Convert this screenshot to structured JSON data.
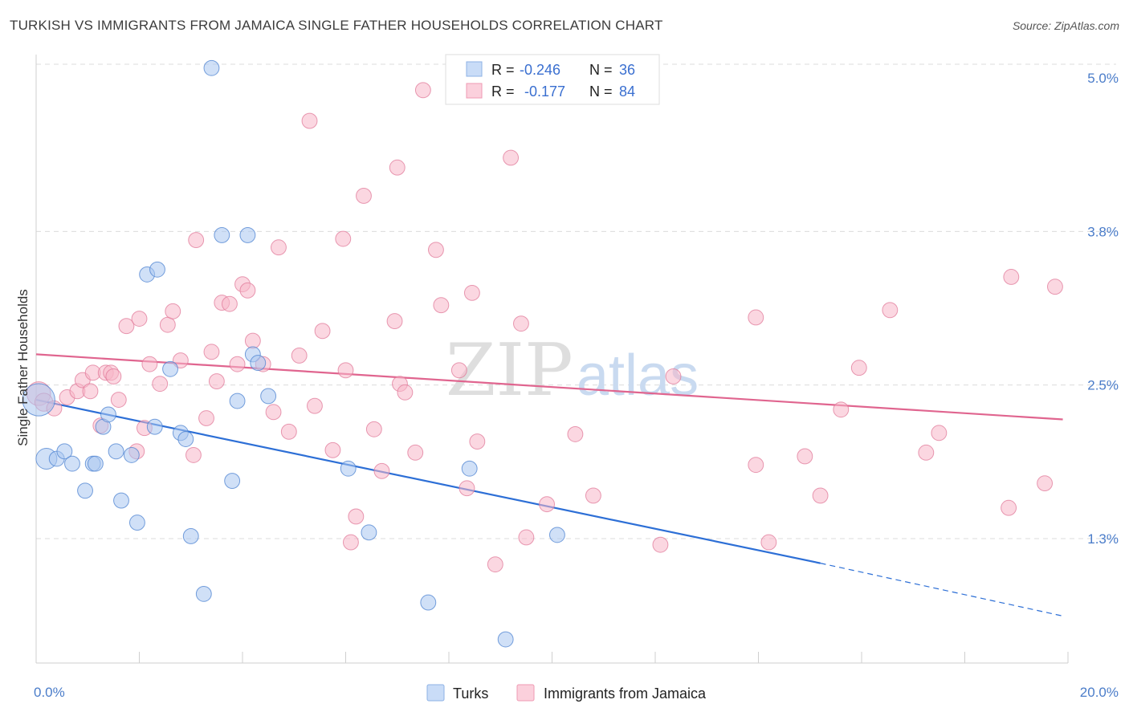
{
  "header": {
    "title": "TURKISH VS IMMIGRANTS FROM JAMAICA SINGLE FATHER HOUSEHOLDS CORRELATION CHART",
    "source": "Source: ZipAtlas.com"
  },
  "watermark": {
    "zip": "ZIP",
    "atlas": "atlas"
  },
  "legend_box": {
    "rows": [
      {
        "r_label": "R =",
        "r_value": "-0.246",
        "n_label": "N =",
        "n_value": "36",
        "color": "#a9c6f0"
      },
      {
        "r_label": "R =",
        "r_value": "-0.177",
        "n_label": "N =",
        "n_value": "84",
        "color": "#f7b6c8"
      }
    ]
  },
  "bottom_legend": {
    "items": [
      {
        "label": "Turks",
        "color": "#a9c6f0"
      },
      {
        "label": "Immigrants from Jamaica",
        "color": "#f7b6c8"
      }
    ]
  },
  "chart_data": {
    "type": "scatter",
    "xlabel": "",
    "ylabel": "Single Father Households",
    "xlim": [
      0,
      20
    ],
    "ylim": [
      0,
      5.2
    ],
    "x_tick_labels": [
      {
        "value": 0,
        "label": "0.0%"
      },
      {
        "value": 20,
        "label": "20.0%"
      }
    ],
    "y_tick_labels": [
      {
        "value": 1.25,
        "label": "1.3%"
      },
      {
        "value": 2.5,
        "label": "2.5%"
      },
      {
        "value": 3.75,
        "label": "3.8%"
      },
      {
        "value": 5.0,
        "label": "5.0%"
      }
    ],
    "grid": true,
    "legend": "top-center",
    "series": [
      {
        "name": "Turks",
        "color": "#a9c6f0",
        "stroke": "#4a80d0",
        "trend_color": "#2d6fd6",
        "trend": {
          "x0": 0,
          "y0": 2.38,
          "x1": 15.2,
          "y1": 1.05,
          "dash_to_x": 19.9,
          "dash_to_y": 0.62
        },
        "points": [
          [
            0.05,
            2.38,
            22
          ],
          [
            0.2,
            1.9,
            14
          ],
          [
            0.4,
            1.9,
            10
          ],
          [
            0.55,
            1.96,
            10
          ],
          [
            0.7,
            1.86,
            10
          ],
          [
            0.95,
            1.64,
            10
          ],
          [
            1.1,
            1.86,
            10
          ],
          [
            1.15,
            1.86,
            10
          ],
          [
            1.3,
            2.16,
            10
          ],
          [
            1.4,
            2.26,
            10
          ],
          [
            1.55,
            1.96,
            10
          ],
          [
            1.65,
            1.56,
            10
          ],
          [
            1.85,
            1.93,
            10
          ],
          [
            1.96,
            1.38,
            10
          ],
          [
            2.15,
            3.4,
            10
          ],
          [
            2.35,
            3.44,
            10
          ],
          [
            2.3,
            2.16,
            10
          ],
          [
            2.6,
            2.63,
            10
          ],
          [
            2.8,
            2.11,
            10
          ],
          [
            2.9,
            2.06,
            10
          ],
          [
            3.0,
            1.27,
            10
          ],
          [
            3.25,
            0.8,
            10
          ],
          [
            3.4,
            5.08,
            10
          ],
          [
            3.6,
            3.72,
            10
          ],
          [
            3.8,
            1.72,
            10
          ],
          [
            3.9,
            2.37,
            10
          ],
          [
            4.1,
            3.72,
            10
          ],
          [
            4.2,
            2.75,
            10
          ],
          [
            4.3,
            2.68,
            10
          ],
          [
            4.5,
            2.41,
            10
          ],
          [
            6.05,
            1.82,
            10
          ],
          [
            6.45,
            1.3,
            10
          ],
          [
            7.6,
            0.73,
            10
          ],
          [
            8.4,
            1.82,
            10
          ],
          [
            9.1,
            0.43,
            10
          ],
          [
            10.1,
            1.28,
            10
          ]
        ]
      },
      {
        "name": "Immigrants from Jamaica",
        "color": "#f7b6c8",
        "stroke": "#e07898",
        "trend_color": "#e0658f",
        "trend": {
          "x0": 0,
          "y0": 2.75,
          "x1": 19.9,
          "y1": 2.22
        },
        "points": [
          [
            0.05,
            2.43,
            16
          ],
          [
            0.15,
            2.36,
            12
          ],
          [
            0.35,
            2.31,
            10
          ],
          [
            0.6,
            2.4,
            10
          ],
          [
            0.8,
            2.45,
            10
          ],
          [
            0.9,
            2.54,
            10
          ],
          [
            1.05,
            2.45,
            10
          ],
          [
            1.1,
            2.6,
            10
          ],
          [
            1.25,
            2.17,
            10
          ],
          [
            1.35,
            2.6,
            10
          ],
          [
            1.45,
            2.6,
            10
          ],
          [
            1.5,
            2.57,
            10
          ],
          [
            1.6,
            2.38,
            10
          ],
          [
            1.75,
            2.98,
            10
          ],
          [
            1.95,
            1.96,
            10
          ],
          [
            2.0,
            3.04,
            10
          ],
          [
            2.1,
            2.15,
            10
          ],
          [
            2.2,
            2.67,
            10
          ],
          [
            2.4,
            2.51,
            10
          ],
          [
            2.55,
            2.99,
            10
          ],
          [
            2.65,
            3.1,
            10
          ],
          [
            2.8,
            2.7,
            10
          ],
          [
            3.05,
            1.93,
            10
          ],
          [
            3.1,
            3.68,
            10
          ],
          [
            3.3,
            2.23,
            10
          ],
          [
            3.4,
            2.77,
            10
          ],
          [
            3.5,
            2.53,
            10
          ],
          [
            3.6,
            3.17,
            10
          ],
          [
            3.75,
            3.16,
            10
          ],
          [
            3.9,
            2.67,
            10
          ],
          [
            4.0,
            3.32,
            10
          ],
          [
            4.1,
            3.27,
            10
          ],
          [
            4.2,
            2.86,
            10
          ],
          [
            4.4,
            2.67,
            10
          ],
          [
            4.6,
            2.28,
            10
          ],
          [
            4.7,
            3.62,
            10
          ],
          [
            4.9,
            2.12,
            10
          ],
          [
            5.1,
            2.74,
            10
          ],
          [
            5.3,
            4.65,
            10
          ],
          [
            5.4,
            2.33,
            10
          ],
          [
            5.55,
            2.94,
            10
          ],
          [
            5.75,
            1.97,
            10
          ],
          [
            5.95,
            3.69,
            10
          ],
          [
            6.0,
            2.62,
            10
          ],
          [
            6.1,
            1.22,
            10
          ],
          [
            6.2,
            1.43,
            10
          ],
          [
            6.35,
            4.04,
            10
          ],
          [
            6.55,
            2.14,
            10
          ],
          [
            6.7,
            1.8,
            10
          ],
          [
            6.95,
            3.02,
            10
          ],
          [
            7.0,
            4.27,
            10
          ],
          [
            7.05,
            2.51,
            10
          ],
          [
            7.15,
            2.44,
            10
          ],
          [
            7.35,
            1.95,
            10
          ],
          [
            7.5,
            4.9,
            10
          ],
          [
            7.75,
            3.6,
            10
          ],
          [
            7.85,
            3.15,
            10
          ],
          [
            8.2,
            2.62,
            10
          ],
          [
            8.35,
            1.66,
            10
          ],
          [
            8.45,
            3.25,
            10
          ],
          [
            8.55,
            2.04,
            10
          ],
          [
            8.9,
            1.04,
            10
          ],
          [
            9.2,
            4.35,
            10
          ],
          [
            9.4,
            3.0,
            10
          ],
          [
            9.5,
            1.26,
            10
          ],
          [
            9.9,
            1.53,
            10
          ],
          [
            10.45,
            2.1,
            10
          ],
          [
            10.8,
            1.6,
            10
          ],
          [
            12.1,
            1.2,
            10
          ],
          [
            12.35,
            2.57,
            10
          ],
          [
            13.95,
            3.05,
            10
          ],
          [
            13.95,
            1.85,
            10
          ],
          [
            14.2,
            1.22,
            10
          ],
          [
            14.9,
            1.92,
            10
          ],
          [
            15.2,
            1.6,
            10
          ],
          [
            15.6,
            2.3,
            10
          ],
          [
            15.95,
            2.64,
            10
          ],
          [
            16.55,
            3.11,
            10
          ],
          [
            17.25,
            1.95,
            10
          ],
          [
            17.5,
            2.11,
            10
          ],
          [
            18.85,
            1.5,
            10
          ],
          [
            18.9,
            3.38,
            10
          ],
          [
            19.55,
            1.7,
            10
          ],
          [
            19.75,
            3.3,
            10
          ]
        ]
      }
    ]
  }
}
